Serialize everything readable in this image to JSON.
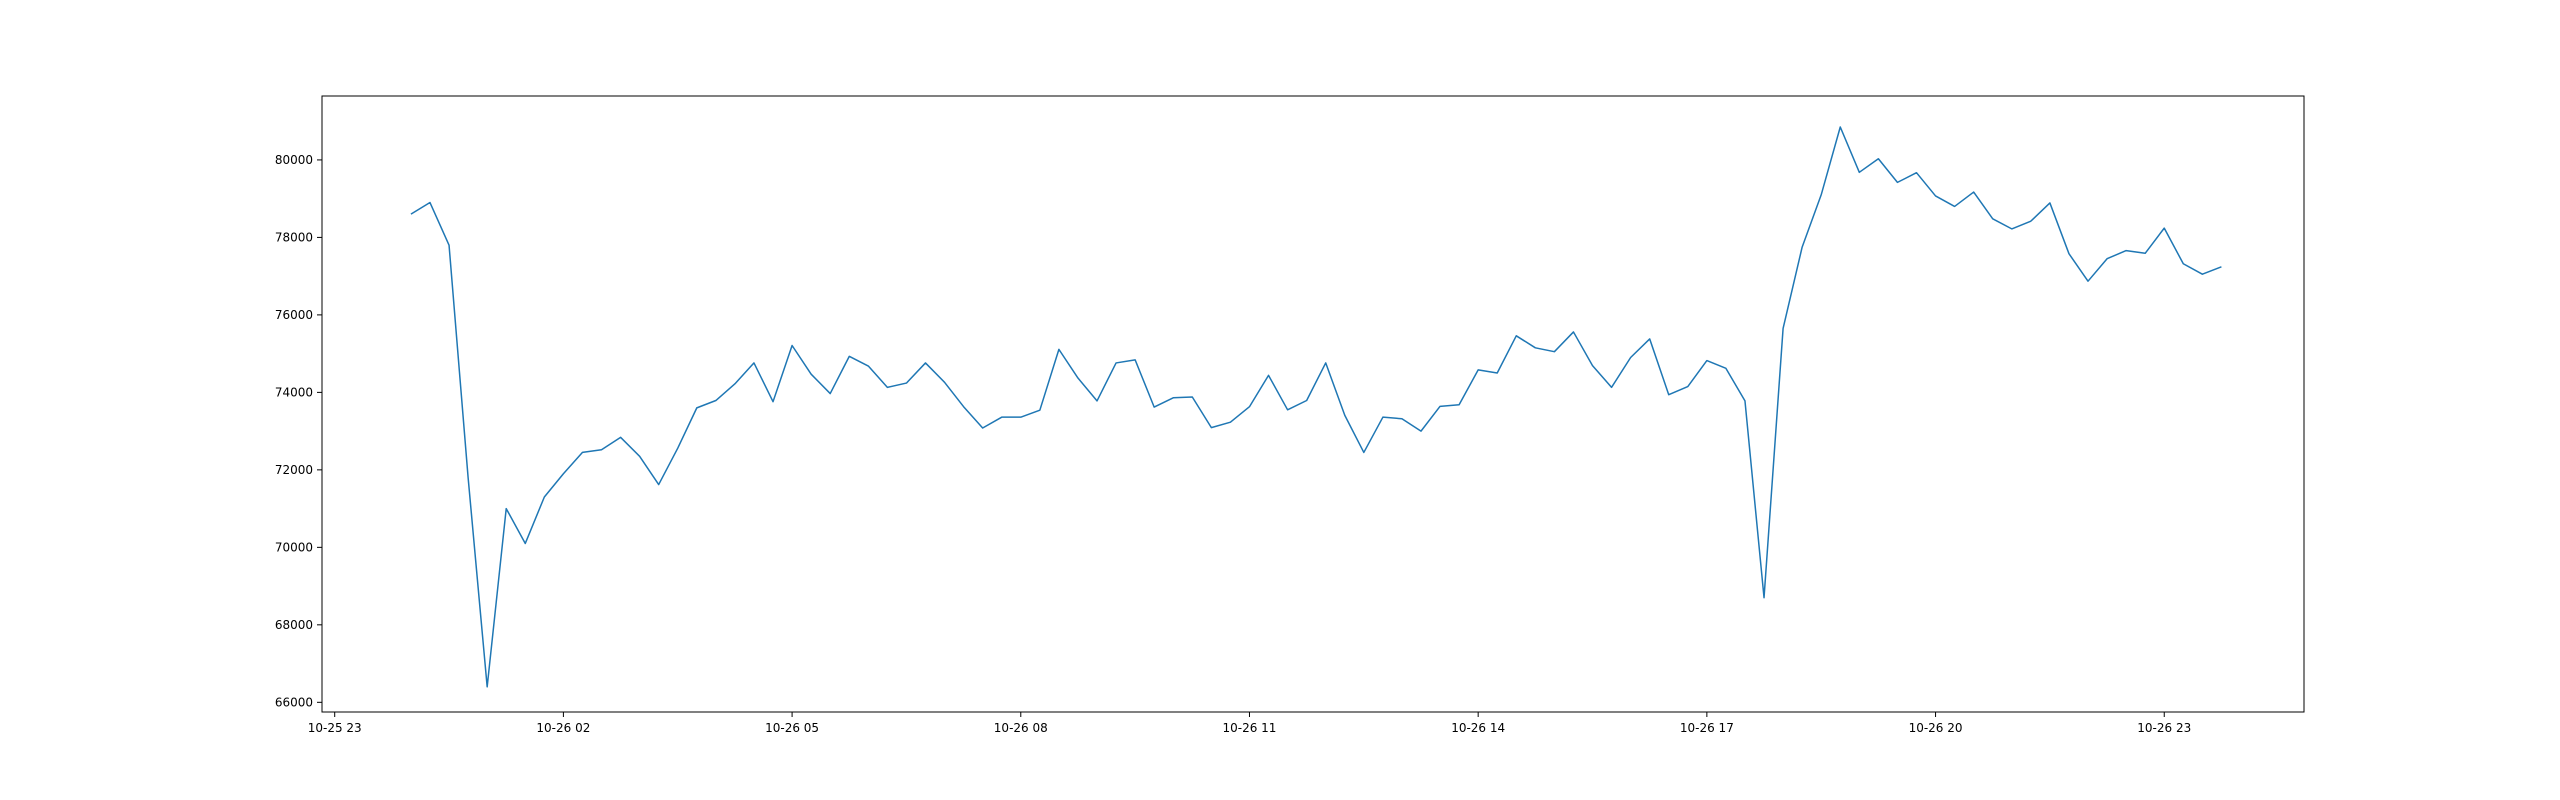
{
  "chart_data": {
    "type": "line",
    "title": "",
    "xlabel": "",
    "ylabel": "",
    "grid": false,
    "line_color": "#1f77b4",
    "x_tick_labels": [
      "10-25 23",
      "10-26 02",
      "10-26 05",
      "10-26 08",
      "10-26 11",
      "10-26 14",
      "10-26 17",
      "10-26 20",
      "10-26 23"
    ],
    "y_ticks": [
      66000,
      68000,
      70000,
      72000,
      74000,
      76000,
      78000,
      80000
    ],
    "xlim": [
      "2024-10-25 22:50",
      "2024-10-27 00:50"
    ],
    "ylim": [
      65750,
      81650
    ],
    "series": [
      {
        "x": [
          "2024-10-26 00:00",
          "2024-10-26 00:15",
          "2024-10-26 00:30",
          "2024-10-26 00:45",
          "2024-10-26 01:00",
          "2024-10-26 01:15",
          "2024-10-26 01:30",
          "2024-10-26 01:45",
          "2024-10-26 02:00",
          "2024-10-26 02:15",
          "2024-10-26 02:30",
          "2024-10-26 02:45",
          "2024-10-26 03:00",
          "2024-10-26 03:15",
          "2024-10-26 03:30",
          "2024-10-26 03:45",
          "2024-10-26 04:00",
          "2024-10-26 04:15",
          "2024-10-26 04:30",
          "2024-10-26 04:45",
          "2024-10-26 05:00",
          "2024-10-26 05:15",
          "2024-10-26 05:30",
          "2024-10-26 05:45",
          "2024-10-26 06:00",
          "2024-10-26 06:15",
          "2024-10-26 06:30",
          "2024-10-26 06:45",
          "2024-10-26 07:00",
          "2024-10-26 07:15",
          "2024-10-26 07:30",
          "2024-10-26 07:45",
          "2024-10-26 08:00",
          "2024-10-26 08:15",
          "2024-10-26 08:30",
          "2024-10-26 08:45",
          "2024-10-26 09:00",
          "2024-10-26 09:15",
          "2024-10-26 09:30",
          "2024-10-26 09:45",
          "2024-10-26 10:00",
          "2024-10-26 10:15",
          "2024-10-26 10:30",
          "2024-10-26 10:45",
          "2024-10-26 11:00",
          "2024-10-26 11:15",
          "2024-10-26 11:30",
          "2024-10-26 11:45",
          "2024-10-26 12:00",
          "2024-10-26 12:15",
          "2024-10-26 12:30",
          "2024-10-26 12:45",
          "2024-10-26 13:00",
          "2024-10-26 13:15",
          "2024-10-26 13:30",
          "2024-10-26 13:45",
          "2024-10-26 14:00",
          "2024-10-26 14:15",
          "2024-10-26 14:30",
          "2024-10-26 14:45",
          "2024-10-26 15:00",
          "2024-10-26 15:15",
          "2024-10-26 15:30",
          "2024-10-26 15:45",
          "2024-10-26 16:00",
          "2024-10-26 16:15",
          "2024-10-26 16:30",
          "2024-10-26 16:45",
          "2024-10-26 17:00",
          "2024-10-26 17:15",
          "2024-10-26 17:30",
          "2024-10-26 17:45",
          "2024-10-26 18:00",
          "2024-10-26 18:15",
          "2024-10-26 18:30",
          "2024-10-26 18:45",
          "2024-10-26 19:00",
          "2024-10-26 19:15",
          "2024-10-26 19:30",
          "2024-10-26 19:45",
          "2024-10-26 20:00",
          "2024-10-26 20:15",
          "2024-10-26 20:30",
          "2024-10-26 20:45",
          "2024-10-26 21:00",
          "2024-10-26 21:15",
          "2024-10-26 21:30",
          "2024-10-26 21:45",
          "2024-10-26 22:00",
          "2024-10-26 22:15",
          "2024-10-26 22:30",
          "2024-10-26 22:45",
          "2024-10-26 23:00",
          "2024-10-26 23:15",
          "2024-10-26 23:30",
          "2024-10-26 23:45"
        ],
        "values": [
          78600,
          78900,
          77800,
          71800,
          66400,
          71000,
          70100,
          71300,
          71900,
          72450,
          72520,
          72840,
          72350,
          71620,
          72560,
          73600,
          73790,
          74220,
          74760,
          73760,
          75210,
          74470,
          73970,
          74930,
          74680,
          74130,
          74240,
          74760,
          74260,
          73630,
          73080,
          73360,
          73360,
          73540,
          75110,
          74370,
          73780,
          74760,
          74840,
          73620,
          73860,
          73880,
          73090,
          73230,
          73630,
          74440,
          73550,
          73790,
          74760,
          73410,
          72450,
          73360,
          73320,
          73000,
          73640,
          73680,
          74580,
          74500,
          75460,
          75150,
          75050,
          75560,
          74690,
          74130,
          74900,
          75380,
          73940,
          74150,
          74820,
          74620,
          73780,
          68700,
          75650,
          77750,
          79100,
          80850,
          79680,
          80030,
          79420,
          79670,
          79070,
          78800,
          79170,
          78480,
          78220,
          78420,
          78890,
          77580,
          76870,
          77450,
          77660,
          77590,
          78240,
          77320,
          77050,
          77240
        ]
      }
    ]
  }
}
